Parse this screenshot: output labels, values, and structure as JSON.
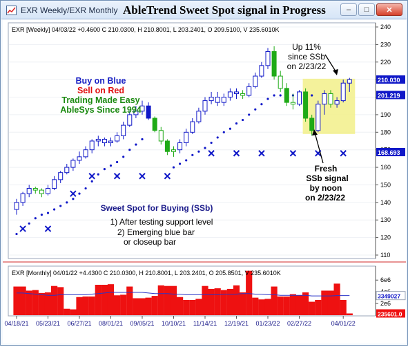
{
  "window": {
    "title": "EXR Weekly/EXR Monthly",
    "headline": "AbleTrend Sweet Spot signal in Progress",
    "buttons": {
      "minimize": "–",
      "maximize": "□",
      "close": "✕"
    }
  },
  "colors": {
    "up": "#1018c8",
    "down": "#1faa16",
    "stop": "#1018c8",
    "ss_box": "#f2f08a",
    "volume": "#ee1111",
    "accent_red": "#e01010"
  },
  "weekly": {
    "info": "EXR [Weekly] 04/03/22  +0.4600 C 210.0300, H 210.8001, L 203.2401, O 209.5100, V 235.6010K",
    "price_tags": [
      {
        "label": "210.030",
        "value": 210.03,
        "bg": "#1018c8",
        "fg": "#ffffff"
      },
      {
        "label": "201.219",
        "value": 201.219,
        "bg": "#1018c8",
        "fg": "#ffffff"
      },
      {
        "label": "168.693",
        "value": 168.693,
        "bg": "#1018c8",
        "fg": "#ffffff"
      }
    ],
    "callouts": {
      "buy": "Buy on Blue",
      "sell": "Sell on Red",
      "easy": "Trading Made Easy",
      "since": "AbleSys Since 1994",
      "up1": "Up 11%",
      "up2": "since SSb",
      "up3": "on 2/23/22",
      "fresh1": "Fresh",
      "fresh2": "SSb signal",
      "fresh3": "by noon",
      "fresh4": "on 2/23/22",
      "sweet": "Sweet Spot for Buying (SSb)",
      "rule1": "1) After testing support level",
      "rule2": "2) Emerging blue bar",
      "rule3": "or closeup bar"
    }
  },
  "monthly": {
    "info": "EXR [Monthly] 04/01/22  +4.4300 C 210.0300, H 210.8001, L 203.2401,  O 205.8501, V 235.6010K",
    "axis_labels": [
      "6e6",
      "4e6",
      "2e6"
    ],
    "tags": [
      {
        "label": "3349027",
        "bg": "#ffffff",
        "fg": "#1018c8"
      },
      {
        "label": "235601.0",
        "bg": "#ee1111",
        "fg": "#ffffff"
      }
    ]
  },
  "x_dates": [
    "04/18/21",
    "05/23/21",
    "06/27/21",
    "08/01/21",
    "09/05/21",
    "10/10/21",
    "11/14/21",
    "12/19/21",
    "01/23/22",
    "02/27/22",
    "04/01/22"
  ],
  "chart_data": {
    "type": "candlestick",
    "title": "EXR [Weekly] 04/03/22",
    "y_ticks": [
      110,
      120,
      130,
      140,
      150,
      160,
      170,
      180,
      190,
      200,
      210,
      220,
      230,
      240
    ],
    "ylim": [
      110,
      240
    ],
    "bars": [
      {
        "o": 136,
        "h": 142,
        "l": 133,
        "c": 140,
        "t": "b"
      },
      {
        "o": 140,
        "h": 146,
        "l": 138,
        "c": 145,
        "t": "b"
      },
      {
        "o": 145,
        "h": 150,
        "l": 143,
        "c": 148,
        "t": "b"
      },
      {
        "o": 148,
        "h": 149,
        "l": 145,
        "c": 147,
        "t": "g"
      },
      {
        "o": 147,
        "h": 148,
        "l": 143,
        "c": 145,
        "t": "g"
      },
      {
        "o": 145,
        "h": 150,
        "l": 144,
        "c": 148,
        "t": "b"
      },
      {
        "o": 148,
        "h": 155,
        "l": 147,
        "c": 153,
        "t": "b"
      },
      {
        "o": 153,
        "h": 158,
        "l": 151,
        "c": 157,
        "t": "b"
      },
      {
        "o": 157,
        "h": 162,
        "l": 156,
        "c": 160,
        "t": "b"
      },
      {
        "o": 160,
        "h": 165,
        "l": 158,
        "c": 164,
        "t": "b"
      },
      {
        "o": 164,
        "h": 169,
        "l": 162,
        "c": 166,
        "t": "b"
      },
      {
        "o": 166,
        "h": 172,
        "l": 165,
        "c": 170,
        "t": "b"
      },
      {
        "o": 170,
        "h": 176,
        "l": 168,
        "c": 175,
        "t": "b"
      },
      {
        "o": 175,
        "h": 178,
        "l": 172,
        "c": 176,
        "t": "b"
      },
      {
        "o": 176,
        "h": 177,
        "l": 172,
        "c": 174,
        "t": "b"
      },
      {
        "o": 174,
        "h": 177,
        "l": 172,
        "c": 175,
        "t": "b"
      },
      {
        "o": 175,
        "h": 180,
        "l": 174,
        "c": 178,
        "t": "b"
      },
      {
        "o": 178,
        "h": 186,
        "l": 176,
        "c": 184,
        "t": "b"
      },
      {
        "o": 184,
        "h": 192,
        "l": 183,
        "c": 190,
        "t": "b"
      },
      {
        "o": 190,
        "h": 195,
        "l": 188,
        "c": 192,
        "t": "b"
      },
      {
        "o": 192,
        "h": 198,
        "l": 190,
        "c": 195,
        "t": "b"
      },
      {
        "o": 195,
        "h": 197,
        "l": 187,
        "c": 188,
        "t": "B"
      },
      {
        "o": 188,
        "h": 189,
        "l": 180,
        "c": 181,
        "t": "G"
      },
      {
        "o": 181,
        "h": 183,
        "l": 173,
        "c": 175,
        "t": "g"
      },
      {
        "o": 175,
        "h": 176,
        "l": 167,
        "c": 169,
        "t": "G"
      },
      {
        "o": 169,
        "h": 172,
        "l": 166,
        "c": 170,
        "t": "g"
      },
      {
        "o": 170,
        "h": 176,
        "l": 168,
        "c": 174,
        "t": "b"
      },
      {
        "o": 174,
        "h": 182,
        "l": 172,
        "c": 180,
        "t": "b"
      },
      {
        "o": 180,
        "h": 188,
        "l": 179,
        "c": 186,
        "t": "b"
      },
      {
        "o": 186,
        "h": 194,
        "l": 185,
        "c": 192,
        "t": "b"
      },
      {
        "o": 192,
        "h": 200,
        "l": 190,
        "c": 198,
        "t": "b"
      },
      {
        "o": 198,
        "h": 203,
        "l": 196,
        "c": 200,
        "t": "b"
      },
      {
        "o": 200,
        "h": 203,
        "l": 195,
        "c": 197,
        "t": "b"
      },
      {
        "o": 197,
        "h": 202,
        "l": 195,
        "c": 200,
        "t": "b"
      },
      {
        "o": 200,
        "h": 205,
        "l": 198,
        "c": 203,
        "t": "b"
      },
      {
        "o": 203,
        "h": 205,
        "l": 199,
        "c": 202,
        "t": "b"
      },
      {
        "o": 202,
        "h": 204,
        "l": 199,
        "c": 201,
        "t": "g"
      },
      {
        "o": 201,
        "h": 208,
        "l": 200,
        "c": 206,
        "t": "b"
      },
      {
        "o": 206,
        "h": 214,
        "l": 205,
        "c": 212,
        "t": "b"
      },
      {
        "o": 212,
        "h": 220,
        "l": 211,
        "c": 218,
        "t": "b"
      },
      {
        "o": 218,
        "h": 228,
        "l": 216,
        "c": 226,
        "t": "b"
      },
      {
        "o": 226,
        "h": 229,
        "l": 210,
        "c": 212,
        "t": "G"
      },
      {
        "o": 212,
        "h": 215,
        "l": 203,
        "c": 205,
        "t": "g"
      },
      {
        "o": 205,
        "h": 208,
        "l": 195,
        "c": 197,
        "t": "G"
      },
      {
        "o": 197,
        "h": 202,
        "l": 193,
        "c": 196,
        "t": "g"
      },
      {
        "o": 196,
        "h": 204,
        "l": 195,
        "c": 203,
        "t": "b"
      },
      {
        "o": 203,
        "h": 205,
        "l": 186,
        "c": 188,
        "t": "G"
      },
      {
        "o": 188,
        "h": 190,
        "l": 178,
        "c": 181,
        "t": "G"
      },
      {
        "o": 181,
        "h": 198,
        "l": 180,
        "c": 196,
        "t": "b"
      },
      {
        "o": 196,
        "h": 204,
        "l": 190,
        "c": 202,
        "t": "b"
      },
      {
        "o": 202,
        "h": 204,
        "l": 194,
        "c": 196,
        "t": "g"
      },
      {
        "o": 196,
        "h": 200,
        "l": 194,
        "c": 198,
        "t": "b"
      },
      {
        "o": 198,
        "h": 210,
        "l": 197,
        "c": 208,
        "t": "b"
      },
      {
        "o": 208,
        "h": 211,
        "l": 203,
        "c": 210,
        "t": "b"
      }
    ],
    "stops": [
      {
        "i": 0,
        "v": 122
      },
      {
        "i": 1,
        "v": 125
      },
      {
        "i": 2,
        "v": 128
      },
      {
        "i": 3,
        "v": 131
      },
      {
        "i": 4,
        "v": 133
      },
      {
        "i": 5,
        "v": 134
      },
      {
        "i": 6,
        "v": 136
      },
      {
        "i": 7,
        "v": 138
      },
      {
        "i": 8,
        "v": 140
      },
      {
        "i": 9,
        "v": 142
      },
      {
        "i": 10,
        "v": 145
      },
      {
        "i": 11,
        "v": 148
      },
      {
        "i": 12,
        "v": 152
      },
      {
        "i": 13,
        "v": 156
      },
      {
        "i": 14,
        "v": 159
      },
      {
        "i": 15,
        "v": 161
      },
      {
        "i": 16,
        "v": 163
      },
      {
        "i": 17,
        "v": 166
      },
      {
        "i": 18,
        "v": 170
      },
      {
        "i": 19,
        "v": 173
      },
      {
        "i": 20,
        "v": 176
      },
      {
        "i": 25,
        "v": 160
      },
      {
        "i": 26,
        "v": 162
      },
      {
        "i": 27,
        "v": 164
      },
      {
        "i": 28,
        "v": 167
      },
      {
        "i": 29,
        "v": 169
      },
      {
        "i": 30,
        "v": 171
      },
      {
        "i": 31,
        "v": 174
      },
      {
        "i": 32,
        "v": 177
      },
      {
        "i": 33,
        "v": 180
      },
      {
        "i": 34,
        "v": 182
      },
      {
        "i": 35,
        "v": 185
      },
      {
        "i": 36,
        "v": 187
      },
      {
        "i": 37,
        "v": 190
      },
      {
        "i": 38,
        "v": 193
      },
      {
        "i": 39,
        "v": 196
      },
      {
        "i": 40,
        "v": 199
      },
      {
        "i": 41,
        "v": 201
      },
      {
        "i": 42,
        "v": 201
      },
      {
        "i": 43,
        "v": 201
      },
      {
        "i": 44,
        "v": 201
      },
      {
        "i": 45,
        "v": 201
      },
      {
        "i": 46,
        "v": 201
      },
      {
        "i": 47,
        "v": 201
      }
    ],
    "crosses": [
      {
        "i": 1,
        "v": 125
      },
      {
        "i": 5,
        "v": 125
      },
      {
        "i": 9,
        "v": 145
      },
      {
        "i": 12,
        "v": 155
      },
      {
        "i": 16,
        "v": 155
      },
      {
        "i": 20,
        "v": 155
      },
      {
        "i": 24,
        "v": 155
      },
      {
        "i": 31,
        "v": 168
      },
      {
        "i": 35,
        "v": 168
      },
      {
        "i": 39,
        "v": 168
      },
      {
        "i": 44,
        "v": 168
      },
      {
        "i": 48,
        "v": 168
      },
      {
        "i": 52,
        "v": 168
      }
    ],
    "monthly_volume": [
      {
        "v": 4.9
      },
      {
        "v": 4.9
      },
      {
        "v": 4.2
      },
      {
        "v": 4.3
      },
      {
        "v": 3.8
      },
      {
        "v": 3.9
      },
      {
        "v": 5.0
      },
      {
        "v": 4.8
      },
      {
        "v": 1.1
      },
      {
        "v": 1.0
      },
      {
        "v": 3.1
      },
      {
        "v": 3.2
      },
      {
        "v": 3.2
      },
      {
        "v": 5.2
      },
      {
        "v": 5.2
      },
      {
        "v": 5.3
      },
      {
        "v": 3.4
      },
      {
        "v": 3.5
      },
      {
        "v": 4.9
      },
      {
        "v": 2.9
      },
      {
        "v": 2.9
      },
      {
        "v": 3.0
      },
      {
        "v": 3.3
      },
      {
        "v": 5.1
      },
      {
        "v": 5.0
      },
      {
        "v": 5.0
      },
      {
        "v": 3.1
      },
      {
        "v": 2.6
      },
      {
        "v": 2.6
      },
      {
        "v": 2.8
      },
      {
        "v": 5.0
      },
      {
        "v": 4.5
      },
      {
        "v": 4.6
      },
      {
        "v": 4.3
      },
      {
        "v": 4.5
      },
      {
        "v": 5.1
      },
      {
        "v": 3.9
      },
      {
        "v": 7.6
      },
      {
        "v": 3.0
      },
      {
        "v": 2.7
      },
      {
        "v": 2.8
      },
      {
        "v": 4.9
      },
      {
        "v": 3.2
      },
      {
        "v": 3.2
      },
      {
        "v": 3.6
      },
      {
        "v": 3.4
      },
      {
        "v": 3.9
      },
      {
        "v": 2.3
      },
      {
        "v": 2.6
      },
      {
        "v": 4.2
      },
      {
        "v": 4.2
      },
      {
        "v": 5.4
      },
      {
        "v": 2.6
      },
      {
        "v": 0.3
      }
    ],
    "monthly_avg": [
      3.8,
      3.8,
      3.7,
      3.6,
      3.5,
      3.4,
      3.4,
      3.5,
      3.5,
      3.5,
      3.5,
      3.5,
      3.6,
      3.7,
      3.8,
      3.9,
      3.9,
      3.9,
      3.9,
      3.9,
      3.9,
      3.8,
      3.7,
      3.7,
      3.7,
      3.6,
      3.6,
      3.5,
      3.5,
      3.5,
      3.5,
      3.5,
      3.5,
      3.6,
      3.6,
      3.6,
      3.7,
      3.7,
      3.6,
      3.6,
      3.5,
      3.5,
      3.4,
      3.4,
      3.4,
      3.4,
      3.4,
      3.3,
      3.3,
      3.3,
      3.3,
      3.35,
      3.35,
      3.35
    ]
  }
}
